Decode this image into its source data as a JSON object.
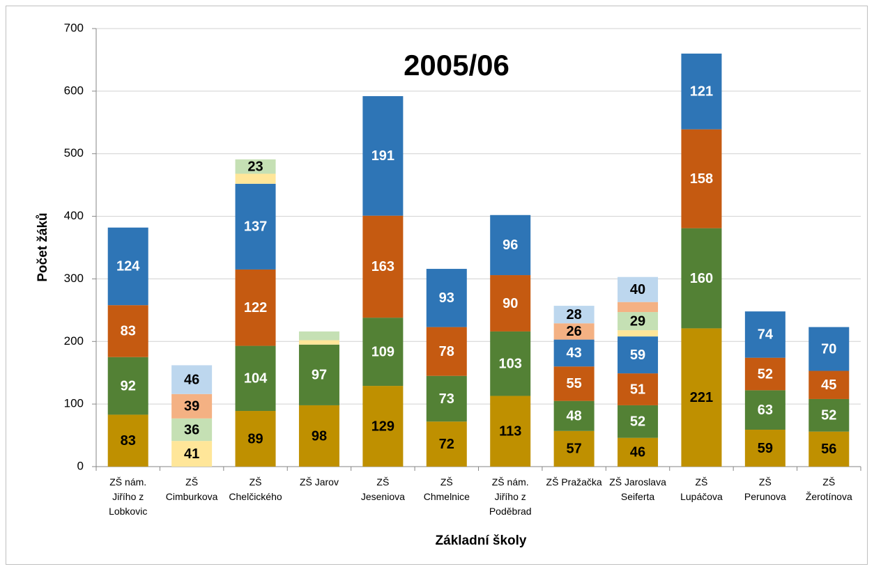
{
  "chart_data": {
    "type": "stacked_bar",
    "title": "2005/06",
    "y_label": "Počet žáků",
    "x_label": "Základní školy",
    "categories": [
      "ZŠ nám.\nJiřího z\nLobkovic",
      "ZŠ\nCimburkova",
      "ZŠ\nChelčického",
      "ZŠ Jarov",
      "ZŠ\nJeseniova",
      "ZŠ\nChmelnice",
      "ZŠ nám.\nJiřího z\nPoděbrad",
      "ZŠ Pražačka",
      "ZŠ Jaroslava\nSeiferta",
      "ZŠ\nLupáčova",
      "ZŠ\nPerunova",
      "ZŠ\nŽerotínova"
    ],
    "series": [
      {
        "color": "#bf9000",
        "label_color": "#000000",
        "values": [
          83,
          null,
          89,
          98,
          129,
          72,
          113,
          57,
          46,
          221,
          59,
          56
        ]
      },
      {
        "color": "#538135",
        "label_color": "#ffffff",
        "values": [
          92,
          null,
          104,
          97,
          109,
          73,
          103,
          48,
          52,
          160,
          63,
          52
        ]
      },
      {
        "color": "#c55a11",
        "label_color": "#ffffff",
        "values": [
          83,
          null,
          122,
          null,
          163,
          78,
          90,
          55,
          51,
          158,
          52,
          45
        ]
      },
      {
        "color": "#2e75b6",
        "label_color": "#ffffff",
        "values": [
          124,
          null,
          137,
          null,
          191,
          93,
          96,
          43,
          59,
          121,
          74,
          70
        ]
      },
      {
        "color": "#ffe699",
        "label_color": "#000000",
        "values": [
          null,
          41,
          16,
          7,
          null,
          null,
          null,
          null,
          10,
          null,
          null,
          null
        ],
        "value_labels": [
          null,
          "41",
          null,
          null,
          null,
          null,
          null,
          null,
          null,
          null,
          null,
          null
        ]
      },
      {
        "color": "#c5e0b4",
        "label_color": "#000000",
        "values": [
          null,
          36,
          23,
          14,
          null,
          null,
          null,
          null,
          29,
          null,
          null,
          null
        ],
        "value_labels": [
          null,
          "36",
          "23",
          null,
          null,
          null,
          null,
          null,
          "29",
          null,
          null,
          null
        ]
      },
      {
        "color": "#f4b183",
        "label_color": "#000000",
        "values": [
          null,
          39,
          null,
          null,
          null,
          null,
          null,
          26,
          16,
          null,
          null,
          null
        ],
        "value_labels": [
          null,
          "39",
          null,
          null,
          null,
          null,
          null,
          "26",
          null,
          null,
          null,
          null
        ]
      },
      {
        "color": "#bdd7ee",
        "label_color": "#000000",
        "values": [
          null,
          46,
          null,
          null,
          null,
          null,
          null,
          28,
          40,
          null,
          null,
          null
        ],
        "value_labels": [
          null,
          "46",
          null,
          null,
          null,
          null,
          null,
          "28",
          "40",
          null,
          null,
          null
        ]
      }
    ],
    "ylim": [
      0,
      700
    ],
    "yticks": [
      0,
      100,
      200,
      300,
      400,
      500,
      600,
      700
    ],
    "grid": true
  }
}
